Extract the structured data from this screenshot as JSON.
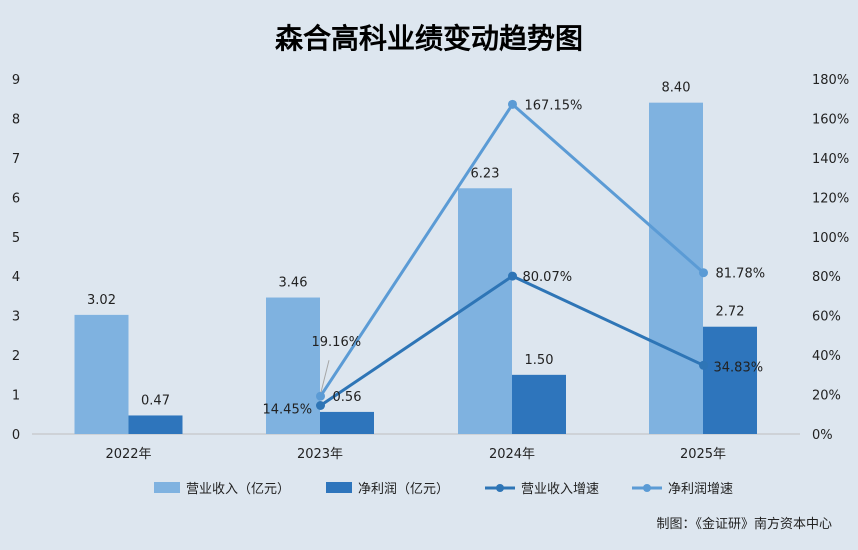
{
  "chart_data": {
    "type": "bar",
    "title": "森合高科业绩变动趋势图",
    "categories": [
      "2022年",
      "2023年",
      "2024年",
      "2025年"
    ],
    "y_left": {
      "ticks": [
        "0",
        "1",
        "2",
        "3",
        "4",
        "5",
        "6",
        "7",
        "8",
        "9"
      ],
      "range": [
        0,
        9
      ]
    },
    "y_right": {
      "ticks": [
        "0%",
        "20%",
        "40%",
        "60%",
        "80%",
        "100%",
        "120%",
        "140%",
        "160%",
        "180%"
      ],
      "range": [
        0,
        180
      ]
    },
    "grid": false,
    "legend_position": "bottom",
    "series": [
      {
        "name": "营业收入（亿元）",
        "kind": "bar",
        "axis": "left",
        "color": "#7fb2e0",
        "values": [
          3.02,
          3.46,
          6.23,
          8.4
        ],
        "labels": [
          "3.02",
          "3.46",
          "6.23",
          "8.40"
        ]
      },
      {
        "name": "净利润（亿元）",
        "kind": "bar",
        "axis": "left",
        "color": "#2e75bc",
        "values": [
          0.47,
          0.56,
          1.5,
          2.72
        ],
        "labels": [
          "0.47",
          "0.56",
          "1.50",
          "2.72"
        ]
      },
      {
        "name": "营业收入增速",
        "kind": "line",
        "axis": "right",
        "color": "#2e75b6",
        "values": [
          null,
          14.45,
          80.07,
          34.83
        ],
        "labels": [
          "",
          "14.45%",
          "80.07%",
          "34.83%"
        ]
      },
      {
        "name": "净利润增速",
        "kind": "line",
        "axis": "right",
        "color": "#5b9bd5",
        "values": [
          null,
          19.16,
          167.15,
          81.78
        ],
        "labels": [
          "",
          "19.16%",
          "167.15%",
          "81.78%"
        ]
      }
    ]
  },
  "credit": "制图：《金证研》南方资本中心"
}
